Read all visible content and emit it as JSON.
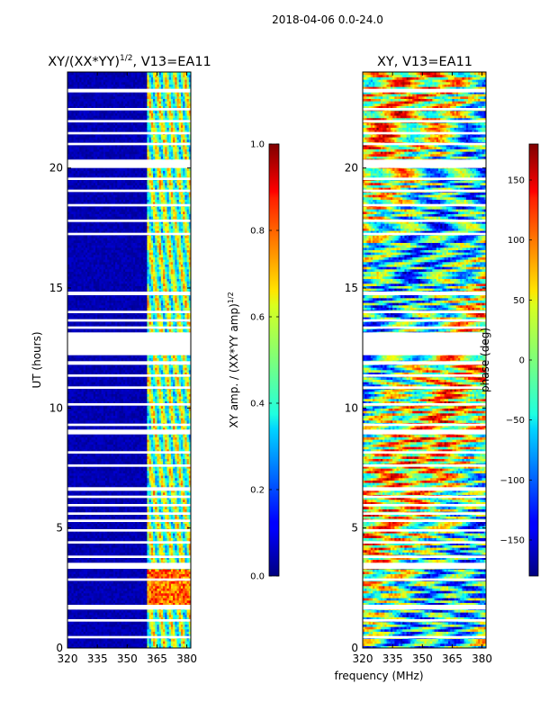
{
  "figure": {
    "suptitle": "2018-04-06 0.0-24.0",
    "shared_xlabel": "frequency (MHz)"
  },
  "chart_data": [
    {
      "type": "heatmap",
      "title_prefix": "XY/(XX*YY)",
      "title_exponent": "1/2",
      "title_suffix": ", V13=EA11",
      "ylabel": "UT (hours)",
      "xlim": [
        320,
        382
      ],
      "ylim": [
        0,
        24
      ],
      "xticks": [
        320,
        335,
        350,
        365,
        380
      ],
      "yticks": [
        0,
        5,
        10,
        15,
        20
      ],
      "colorscale": "jet",
      "colorbar": {
        "label_prefix": "XY amp. / (XX*YY amp)",
        "label_exponent": "1/2",
        "range": [
          0.0,
          1.0
        ],
        "ticks": [
          "0.0",
          "0.2",
          "0.4",
          "0.6",
          "0.8",
          "1.0"
        ]
      },
      "description_values": {
        "background_level": 0.02,
        "band_freq_range_mhz": [
          360,
          381
        ],
        "band_level_range": [
          0.3,
          0.7
        ],
        "high_amp_hours": [
          1.8,
          3.3
        ],
        "high_amp_level": 0.9
      }
    },
    {
      "type": "heatmap",
      "title": "XY, V13=EA11",
      "xlim": [
        320,
        382
      ],
      "ylim": [
        0,
        24
      ],
      "xticks": [
        320,
        335,
        350,
        365,
        380
      ],
      "yticks": [
        0,
        5,
        10,
        15,
        20
      ],
      "colorscale": "jet",
      "colorbar": {
        "label": "phase (deg)",
        "range": [
          -180,
          180
        ],
        "ticks": [
          "−150",
          "−100",
          "−50",
          "0",
          "50",
          "100",
          "150"
        ]
      }
    }
  ],
  "data_gaps_hours": [
    [
      23.15,
      23.3
    ],
    [
      22.4,
      22.5
    ],
    [
      21.9,
      22.0
    ],
    [
      21.4,
      21.5
    ],
    [
      20.95,
      21.05
    ],
    [
      20.0,
      20.35
    ],
    [
      19.5,
      19.6
    ],
    [
      19.0,
      19.1
    ],
    [
      18.4,
      18.5
    ],
    [
      17.75,
      17.85
    ],
    [
      17.2,
      17.3
    ],
    [
      14.7,
      14.85
    ],
    [
      13.95,
      14.05
    ],
    [
      13.6,
      13.7
    ],
    [
      13.3,
      13.4
    ],
    [
      12.2,
      13.15
    ],
    [
      11.8,
      11.95
    ],
    [
      11.3,
      11.4
    ],
    [
      10.8,
      10.9
    ],
    [
      10.1,
      10.2
    ],
    [
      9.25,
      9.35
    ],
    [
      8.9,
      9.1
    ],
    [
      8.1,
      8.2
    ],
    [
      7.55,
      7.65
    ],
    [
      6.55,
      6.7
    ],
    [
      6.25,
      6.35
    ],
    [
      5.9,
      6.0
    ],
    [
      5.55,
      5.65
    ],
    [
      5.25,
      5.35
    ],
    [
      4.85,
      4.95
    ],
    [
      4.35,
      4.45
    ],
    [
      3.75,
      3.85
    ],
    [
      3.3,
      3.55
    ],
    [
      2.8,
      2.9
    ],
    [
      1.6,
      1.8
    ],
    [
      1.1,
      1.2
    ],
    [
      0.4,
      0.5
    ]
  ]
}
